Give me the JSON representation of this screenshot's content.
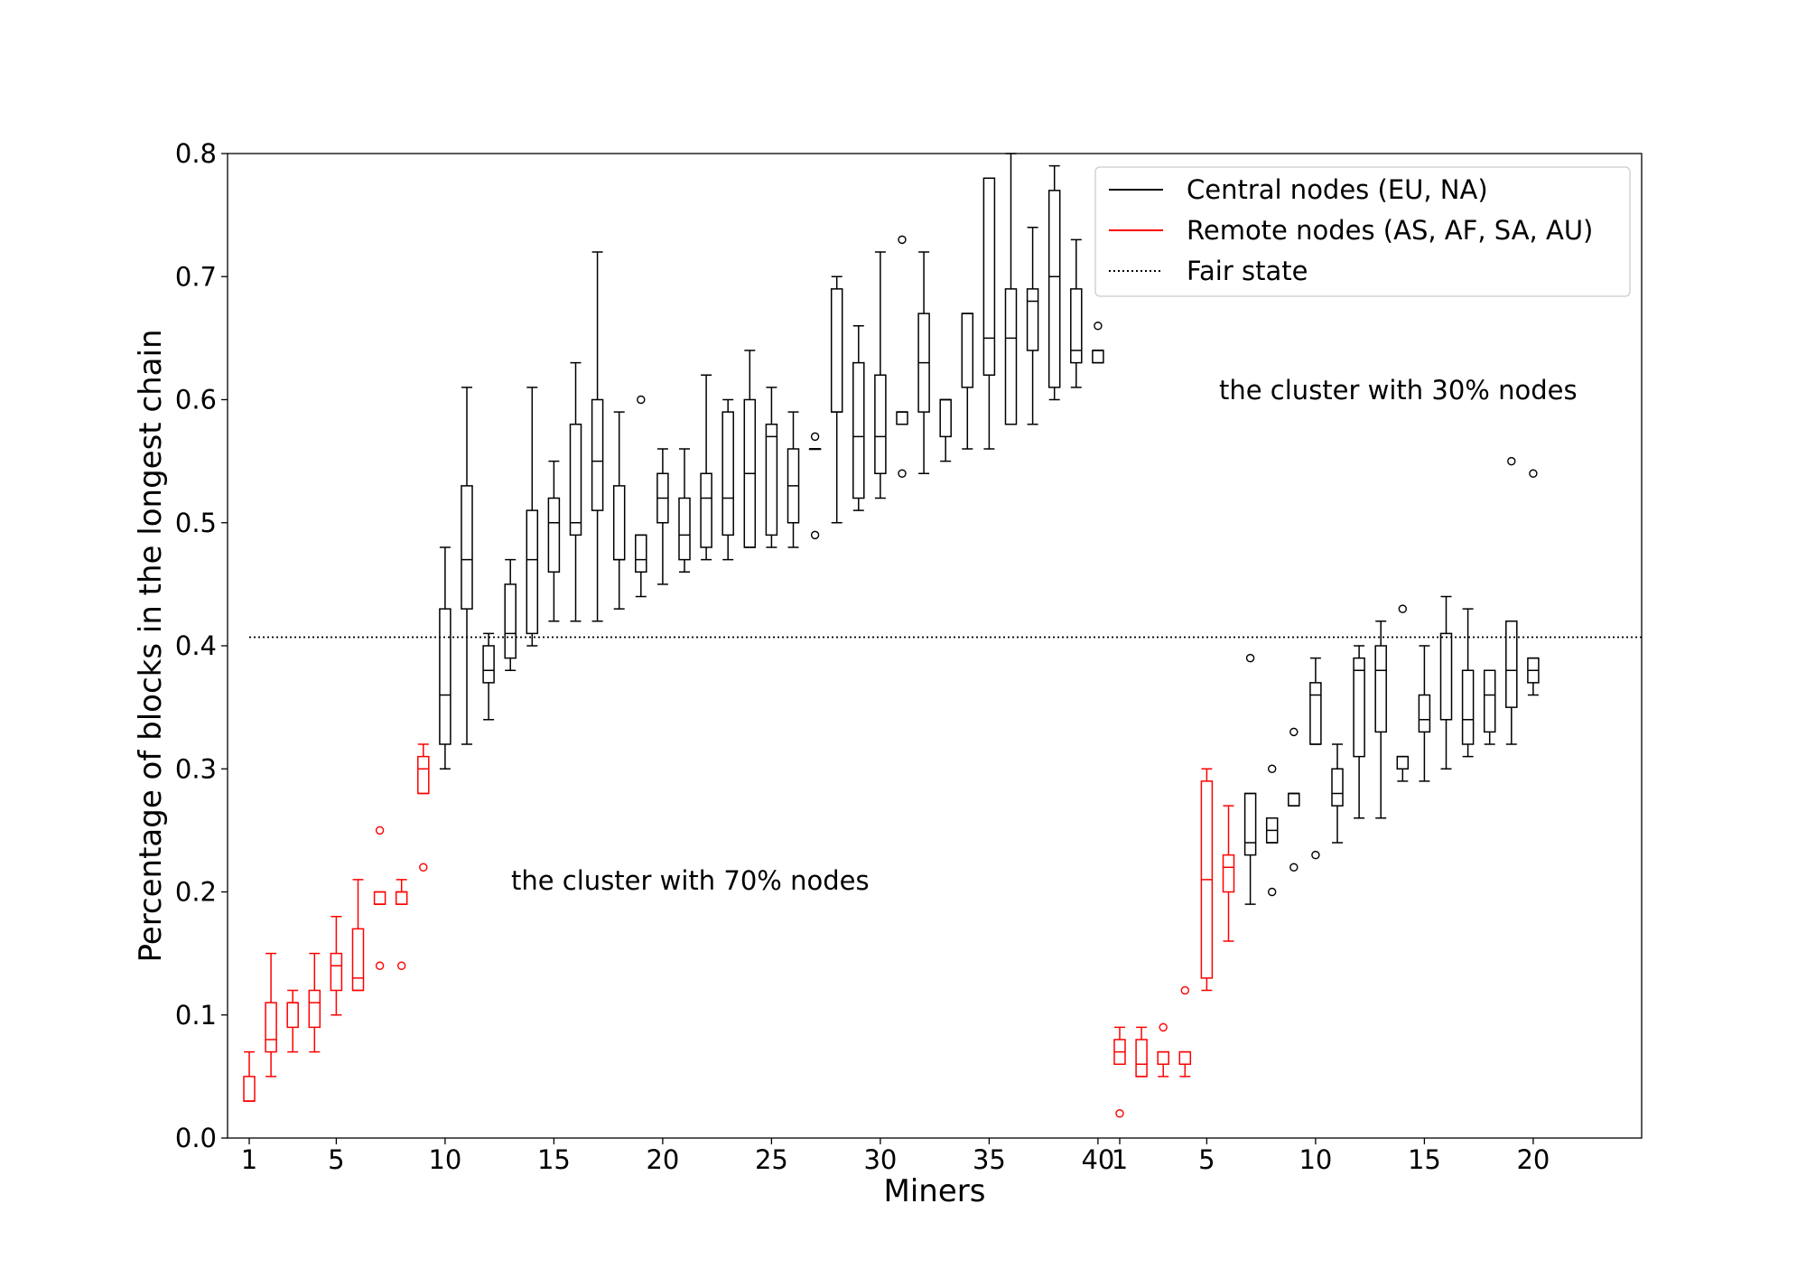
{
  "chart_data": {
    "type": "box",
    "xlabel": "Miners",
    "ylabel": "Percentage of blocks in the longest chain",
    "ylim": [
      0,
      0.8
    ],
    "yticks": [
      "0.0",
      "0.1",
      "0.2",
      "0.3",
      "0.4",
      "0.5",
      "0.6",
      "0.7",
      "0.8"
    ],
    "fair_state_value": 0.407,
    "legend_placement": "upper-right",
    "legend": [
      {
        "label": "Central nodes (EU, NA)",
        "style": "solid",
        "color": "#000000"
      },
      {
        "label": "Remote nodes (AS, AF, SA, AU)",
        "style": "solid",
        "color": "#ff0000"
      },
      {
        "label": "Fair state",
        "style": "dotted",
        "color": "#000000"
      }
    ],
    "annotations": [
      "the cluster with 70% nodes",
      "the cluster with 30% nodes"
    ],
    "groups": [
      {
        "name": "the cluster with 70% nodes",
        "miner_count": 40,
        "tick_labels": [
          "1",
          "5",
          "10",
          "15",
          "20",
          "25",
          "30",
          "35",
          "40"
        ],
        "tick_positions": [
          1,
          5,
          10,
          15,
          20,
          25,
          30,
          35,
          40
        ],
        "boxes": [
          {
            "miner": 1,
            "type": "remote",
            "whislo": 0.03,
            "q1": 0.03,
            "med": 0.03,
            "q3": 0.05,
            "whishi": 0.07,
            "fliers": []
          },
          {
            "miner": 2,
            "type": "remote",
            "whislo": 0.05,
            "q1": 0.07,
            "med": 0.08,
            "q3": 0.11,
            "whishi": 0.15,
            "fliers": []
          },
          {
            "miner": 3,
            "type": "remote",
            "whislo": 0.07,
            "q1": 0.09,
            "med": 0.11,
            "q3": 0.11,
            "whishi": 0.12,
            "fliers": []
          },
          {
            "miner": 4,
            "type": "remote",
            "whislo": 0.07,
            "q1": 0.09,
            "med": 0.11,
            "q3": 0.12,
            "whishi": 0.15,
            "fliers": []
          },
          {
            "miner": 5,
            "type": "remote",
            "whislo": 0.1,
            "q1": 0.12,
            "med": 0.14,
            "q3": 0.15,
            "whishi": 0.18,
            "fliers": []
          },
          {
            "miner": 6,
            "type": "remote",
            "whislo": 0.12,
            "q1": 0.12,
            "med": 0.13,
            "q3": 0.17,
            "whishi": 0.21,
            "fliers": []
          },
          {
            "miner": 7,
            "type": "remote",
            "whislo": 0.19,
            "q1": 0.19,
            "med": 0.19,
            "q3": 0.2,
            "whishi": 0.2,
            "fliers": [
              0.25,
              0.14
            ]
          },
          {
            "miner": 8,
            "type": "remote",
            "whislo": 0.19,
            "q1": 0.19,
            "med": 0.2,
            "q3": 0.2,
            "whishi": 0.21,
            "fliers": [
              0.14
            ]
          },
          {
            "miner": 9,
            "type": "remote",
            "whislo": 0.28,
            "q1": 0.28,
            "med": 0.3,
            "q3": 0.31,
            "whishi": 0.32,
            "fliers": [
              0.22
            ]
          },
          {
            "miner": 10,
            "type": "central",
            "whislo": 0.3,
            "q1": 0.32,
            "med": 0.36,
            "q3": 0.43,
            "whishi": 0.48,
            "fliers": []
          },
          {
            "miner": 11,
            "type": "central",
            "whislo": 0.32,
            "q1": 0.43,
            "med": 0.47,
            "q3": 0.53,
            "whishi": 0.61,
            "fliers": []
          },
          {
            "miner": 12,
            "type": "central",
            "whislo": 0.34,
            "q1": 0.37,
            "med": 0.38,
            "q3": 0.4,
            "whishi": 0.41,
            "fliers": []
          },
          {
            "miner": 13,
            "type": "central",
            "whislo": 0.38,
            "q1": 0.39,
            "med": 0.41,
            "q3": 0.45,
            "whishi": 0.47,
            "fliers": []
          },
          {
            "miner": 14,
            "type": "central",
            "whislo": 0.4,
            "q1": 0.41,
            "med": 0.47,
            "q3": 0.51,
            "whishi": 0.61,
            "fliers": []
          },
          {
            "miner": 15,
            "type": "central",
            "whislo": 0.42,
            "q1": 0.46,
            "med": 0.5,
            "q3": 0.52,
            "whishi": 0.55,
            "fliers": []
          },
          {
            "miner": 16,
            "type": "central",
            "whislo": 0.42,
            "q1": 0.49,
            "med": 0.5,
            "q3": 0.58,
            "whishi": 0.63,
            "fliers": []
          },
          {
            "miner": 17,
            "type": "central",
            "whislo": 0.42,
            "q1": 0.51,
            "med": 0.55,
            "q3": 0.6,
            "whishi": 0.72,
            "fliers": []
          },
          {
            "miner": 18,
            "type": "central",
            "whislo": 0.43,
            "q1": 0.47,
            "med": 0.47,
            "q3": 0.53,
            "whishi": 0.59,
            "fliers": []
          },
          {
            "miner": 19,
            "type": "central",
            "whislo": 0.44,
            "q1": 0.46,
            "med": 0.47,
            "q3": 0.49,
            "whishi": 0.49,
            "fliers": [
              0.6
            ]
          },
          {
            "miner": 20,
            "type": "central",
            "whislo": 0.45,
            "q1": 0.5,
            "med": 0.52,
            "q3": 0.54,
            "whishi": 0.56,
            "fliers": []
          },
          {
            "miner": 21,
            "type": "central",
            "whislo": 0.46,
            "q1": 0.47,
            "med": 0.49,
            "q3": 0.52,
            "whishi": 0.56,
            "fliers": []
          },
          {
            "miner": 22,
            "type": "central",
            "whislo": 0.47,
            "q1": 0.48,
            "med": 0.52,
            "q3": 0.54,
            "whishi": 0.62,
            "fliers": []
          },
          {
            "miner": 23,
            "type": "central",
            "whislo": 0.47,
            "q1": 0.49,
            "med": 0.52,
            "q3": 0.59,
            "whishi": 0.6,
            "fliers": []
          },
          {
            "miner": 24,
            "type": "central",
            "whislo": 0.48,
            "q1": 0.48,
            "med": 0.54,
            "q3": 0.6,
            "whishi": 0.64,
            "fliers": []
          },
          {
            "miner": 25,
            "type": "central",
            "whislo": 0.48,
            "q1": 0.49,
            "med": 0.57,
            "q3": 0.58,
            "whishi": 0.61,
            "fliers": []
          },
          {
            "miner": 26,
            "type": "central",
            "whislo": 0.48,
            "q1": 0.5,
            "med": 0.53,
            "q3": 0.56,
            "whishi": 0.59,
            "fliers": []
          },
          {
            "miner": 27,
            "type": "central",
            "whislo": 0.56,
            "q1": 0.56,
            "med": 0.56,
            "q3": 0.56,
            "whishi": 0.56,
            "fliers": [
              0.57,
              0.49
            ]
          },
          {
            "miner": 28,
            "type": "central",
            "whislo": 0.5,
            "q1": 0.59,
            "med": 0.59,
            "q3": 0.69,
            "whishi": 0.7,
            "fliers": []
          },
          {
            "miner": 29,
            "type": "central",
            "whislo": 0.51,
            "q1": 0.52,
            "med": 0.57,
            "q3": 0.63,
            "whishi": 0.66,
            "fliers": []
          },
          {
            "miner": 30,
            "type": "central",
            "whislo": 0.52,
            "q1": 0.54,
            "med": 0.57,
            "q3": 0.62,
            "whishi": 0.72,
            "fliers": []
          },
          {
            "miner": 31,
            "type": "central",
            "whislo": 0.58,
            "q1": 0.58,
            "med": 0.59,
            "q3": 0.59,
            "whishi": 0.59,
            "fliers": [
              0.73,
              0.54
            ]
          },
          {
            "miner": 32,
            "type": "central",
            "whislo": 0.54,
            "q1": 0.59,
            "med": 0.63,
            "q3": 0.67,
            "whishi": 0.72,
            "fliers": []
          },
          {
            "miner": 33,
            "type": "central",
            "whislo": 0.55,
            "q1": 0.57,
            "med": 0.6,
            "q3": 0.6,
            "whishi": 0.6,
            "fliers": []
          },
          {
            "miner": 34,
            "type": "central",
            "whislo": 0.56,
            "q1": 0.61,
            "med": 0.67,
            "q3": 0.67,
            "whishi": 0.67,
            "fliers": []
          },
          {
            "miner": 35,
            "type": "central",
            "whislo": 0.56,
            "q1": 0.62,
            "med": 0.65,
            "q3": 0.78,
            "whishi": 0.78,
            "fliers": []
          },
          {
            "miner": 36,
            "type": "central",
            "whislo": 0.58,
            "q1": 0.58,
            "med": 0.65,
            "q3": 0.69,
            "whishi": 0.8,
            "fliers": []
          },
          {
            "miner": 37,
            "type": "central",
            "whislo": 0.58,
            "q1": 0.64,
            "med": 0.68,
            "q3": 0.69,
            "whishi": 0.74,
            "fliers": []
          },
          {
            "miner": 38,
            "type": "central",
            "whislo": 0.6,
            "q1": 0.61,
            "med": 0.7,
            "q3": 0.77,
            "whishi": 0.79,
            "fliers": []
          },
          {
            "miner": 39,
            "type": "central",
            "whislo": 0.61,
            "q1": 0.63,
            "med": 0.64,
            "q3": 0.69,
            "whishi": 0.73,
            "fliers": []
          },
          {
            "miner": 40,
            "type": "central",
            "whislo": 0.63,
            "q1": 0.63,
            "med": 0.64,
            "q3": 0.64,
            "whishi": 0.64,
            "fliers": [
              0.66
            ]
          }
        ]
      },
      {
        "name": "the cluster with 30% nodes",
        "miner_count": 20,
        "tick_labels": [
          "1",
          "5",
          "10",
          "15",
          "20"
        ],
        "tick_positions": [
          1,
          5,
          10,
          15,
          20
        ],
        "boxes": [
          {
            "miner": 1,
            "type": "remote",
            "whislo": 0.06,
            "q1": 0.06,
            "med": 0.07,
            "q3": 0.08,
            "whishi": 0.09,
            "fliers": [
              0.02
            ]
          },
          {
            "miner": 2,
            "type": "remote",
            "whislo": 0.05,
            "q1": 0.05,
            "med": 0.06,
            "q3": 0.08,
            "whishi": 0.09,
            "fliers": []
          },
          {
            "miner": 3,
            "type": "remote",
            "whislo": 0.05,
            "q1": 0.06,
            "med": 0.06,
            "q3": 0.07,
            "whishi": 0.07,
            "fliers": [
              0.09
            ]
          },
          {
            "miner": 4,
            "type": "remote",
            "whislo": 0.05,
            "q1": 0.06,
            "med": 0.06,
            "q3": 0.07,
            "whishi": 0.07,
            "fliers": [
              0.12
            ]
          },
          {
            "miner": 5,
            "type": "remote",
            "whislo": 0.12,
            "q1": 0.13,
            "med": 0.21,
            "q3": 0.29,
            "whishi": 0.3,
            "fliers": []
          },
          {
            "miner": 6,
            "type": "remote",
            "whislo": 0.16,
            "q1": 0.2,
            "med": 0.22,
            "q3": 0.23,
            "whishi": 0.27,
            "fliers": []
          },
          {
            "miner": 7,
            "type": "central",
            "whislo": 0.19,
            "q1": 0.23,
            "med": 0.24,
            "q3": 0.28,
            "whishi": 0.28,
            "fliers": [
              0.39
            ]
          },
          {
            "miner": 8,
            "type": "central",
            "whislo": 0.24,
            "q1": 0.24,
            "med": 0.25,
            "q3": 0.26,
            "whishi": 0.26,
            "fliers": [
              0.3,
              0.2
            ]
          },
          {
            "miner": 9,
            "type": "central",
            "whislo": 0.27,
            "q1": 0.27,
            "med": 0.28,
            "q3": 0.28,
            "whishi": 0.28,
            "fliers": [
              0.33,
              0.22
            ]
          },
          {
            "miner": 10,
            "type": "central",
            "whislo": 0.32,
            "q1": 0.32,
            "med": 0.36,
            "q3": 0.37,
            "whishi": 0.39,
            "fliers": [
              0.23
            ]
          },
          {
            "miner": 11,
            "type": "central",
            "whislo": 0.24,
            "q1": 0.27,
            "med": 0.28,
            "q3": 0.3,
            "whishi": 0.32,
            "fliers": []
          },
          {
            "miner": 12,
            "type": "central",
            "whislo": 0.26,
            "q1": 0.31,
            "med": 0.38,
            "q3": 0.39,
            "whishi": 0.4,
            "fliers": []
          },
          {
            "miner": 13,
            "type": "central",
            "whislo": 0.26,
            "q1": 0.33,
            "med": 0.38,
            "q3": 0.4,
            "whishi": 0.42,
            "fliers": []
          },
          {
            "miner": 14,
            "type": "central",
            "whislo": 0.29,
            "q1": 0.3,
            "med": 0.3,
            "q3": 0.31,
            "whishi": 0.31,
            "fliers": [
              0.43
            ]
          },
          {
            "miner": 15,
            "type": "central",
            "whislo": 0.29,
            "q1": 0.33,
            "med": 0.34,
            "q3": 0.36,
            "whishi": 0.4,
            "fliers": []
          },
          {
            "miner": 16,
            "type": "central",
            "whislo": 0.3,
            "q1": 0.34,
            "med": 0.34,
            "q3": 0.41,
            "whishi": 0.44,
            "fliers": []
          },
          {
            "miner": 17,
            "type": "central",
            "whislo": 0.31,
            "q1": 0.32,
            "med": 0.34,
            "q3": 0.38,
            "whishi": 0.43,
            "fliers": []
          },
          {
            "miner": 18,
            "type": "central",
            "whislo": 0.32,
            "q1": 0.33,
            "med": 0.36,
            "q3": 0.38,
            "whishi": 0.38,
            "fliers": []
          },
          {
            "miner": 19,
            "type": "central",
            "whislo": 0.32,
            "q1": 0.35,
            "med": 0.38,
            "q3": 0.42,
            "whishi": 0.42,
            "fliers": [
              0.55
            ]
          },
          {
            "miner": 20,
            "type": "central",
            "whislo": 0.36,
            "q1": 0.37,
            "med": 0.38,
            "q3": 0.39,
            "whishi": 0.39,
            "fliers": [
              0.54
            ]
          }
        ]
      }
    ]
  }
}
